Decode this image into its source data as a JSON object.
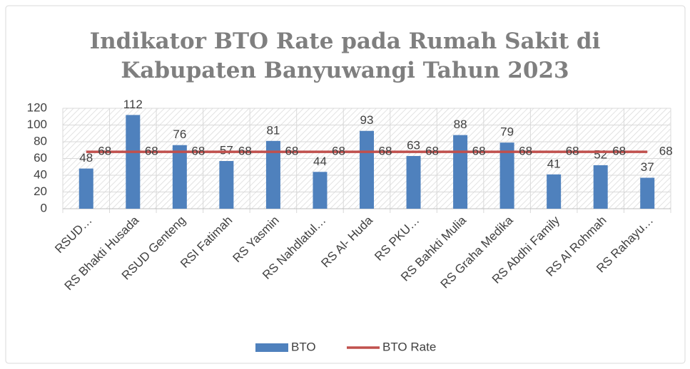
{
  "chart_data": {
    "type": "bar",
    "title": "Indikator BTO Rate pada Rumah Sakit di Kabupaten Banyuwangi Tahun 2023",
    "categories": [
      "RSUD…",
      "RS Bhakti Husada",
      "RSUD Genteng",
      "RSI Fatimah",
      "RS Yasmin",
      "RS Nahdlatul…",
      "RS Al- Huda",
      "RS PKU…",
      "RS Bahkti Mulia",
      "RS Graha Medika",
      "RS Abdhi Family",
      "RS Al Rohmah",
      "RS Rahayu…"
    ],
    "series": [
      {
        "name": "BTO",
        "type": "bar",
        "color": "#4f81bd",
        "values": [
          48,
          112,
          76,
          57,
          81,
          44,
          93,
          63,
          88,
          79,
          41,
          52,
          37
        ]
      },
      {
        "name": "BTO Rate",
        "type": "line",
        "color": "#c0504d",
        "values": [
          68,
          68,
          68,
          68,
          68,
          68,
          68,
          68,
          68,
          68,
          68,
          68,
          68
        ]
      }
    ],
    "ylim": [
      0,
      120
    ],
    "yticks": [
      0,
      20,
      40,
      60,
      80,
      100,
      120
    ],
    "grid": true,
    "legend": "bottom"
  }
}
